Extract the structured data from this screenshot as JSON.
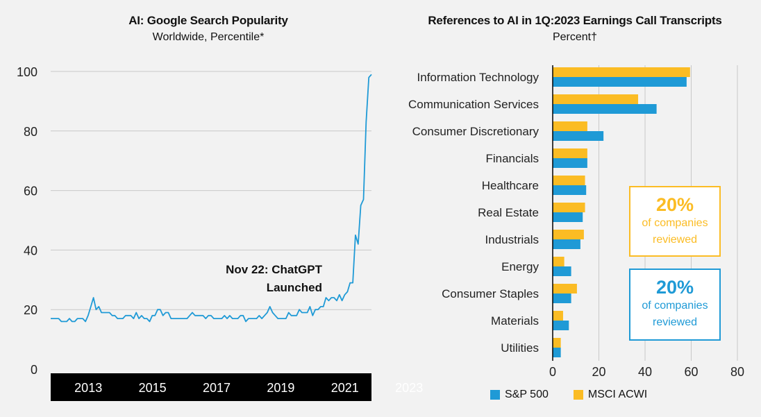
{
  "colors": {
    "sp500": "#1f9ad6",
    "msci": "#fbbc24",
    "line": "#1f9ad6",
    "axis_bar": "#000000",
    "grid": "#c8c8c8"
  },
  "left": {
    "title": "AI: Google Search Popularity",
    "subtitle": "Worldwide, Percentile*",
    "annotation_line1": "Nov 22: ChatGPT",
    "annotation_line2": "Launched"
  },
  "right": {
    "title": "References to AI in 1Q:2023 Earnings Call Transcripts",
    "subtitle": "Percent†",
    "callout_msci": {
      "value": "20%",
      "line1": "of companies",
      "line2": "reviewed"
    },
    "callout_sp": {
      "value": "20%",
      "line1": "of companies",
      "line2": "reviewed"
    }
  },
  "chart_data": [
    {
      "type": "line",
      "title": "AI: Google Search Popularity",
      "subtitle": "Worldwide, Percentile*",
      "ylim": [
        0,
        100
      ],
      "yticks": [
        0,
        20,
        40,
        60,
        80,
        100
      ],
      "xticks": [
        "2013",
        "2015",
        "2017",
        "2019",
        "2021",
        "2023"
      ],
      "x_start": "2012-01",
      "series": [
        {
          "values": [
            17,
            17,
            17,
            17,
            16,
            16,
            16,
            17,
            16,
            16,
            17,
            17,
            17,
            16,
            18,
            21,
            24,
            20,
            21,
            19,
            19,
            19,
            19,
            18,
            18,
            17,
            17,
            17,
            18,
            18,
            18,
            17,
            19,
            17,
            18,
            17,
            17,
            16,
            18,
            18,
            20,
            20,
            18,
            19,
            19,
            17,
            17,
            17,
            17,
            17,
            17,
            17,
            18,
            19,
            18,
            18,
            18,
            18,
            17,
            18,
            18,
            17,
            17,
            17,
            17,
            18,
            17,
            18,
            17,
            17,
            17,
            18,
            18,
            16,
            17,
            17,
            17,
            17,
            18,
            17,
            18,
            19,
            21,
            19,
            18,
            17,
            17,
            17,
            17,
            19,
            18,
            18,
            18,
            20,
            19,
            19,
            19,
            21,
            18,
            20,
            20,
            21,
            21,
            24,
            23,
            24,
            24,
            23,
            25,
            23,
            25,
            26,
            29,
            29,
            45,
            42,
            55,
            57,
            83,
            98,
            99
          ]
        }
      ],
      "annotation": "Nov 22: ChatGPT Launched"
    },
    {
      "type": "bar",
      "orientation": "horizontal",
      "title": "References to AI in 1Q:2023 Earnings Call Transcripts",
      "subtitle": "Percent†",
      "categories": [
        "Information Technology",
        "Communication Services",
        "Consumer Discretionary",
        "Financials",
        "Healthcare",
        "Real Estate",
        "Industrials",
        "Energy",
        "Consumer Staples",
        "Materials",
        "Utilities"
      ],
      "xlim": [
        0,
        80
      ],
      "xticks": [
        0,
        20,
        40,
        60,
        80
      ],
      "grid": true,
      "legend_position": "bottom",
      "series": [
        {
          "name": "S&P 500",
          "values": [
            58,
            45,
            22,
            15,
            14.5,
            13,
            12,
            8,
            8,
            7,
            3.5
          ]
        },
        {
          "name": "MSCI ACWI",
          "values": [
            59.5,
            37,
            15,
            15,
            14,
            14,
            13.5,
            5,
            10.5,
            4.5,
            3.5
          ]
        }
      ]
    }
  ]
}
